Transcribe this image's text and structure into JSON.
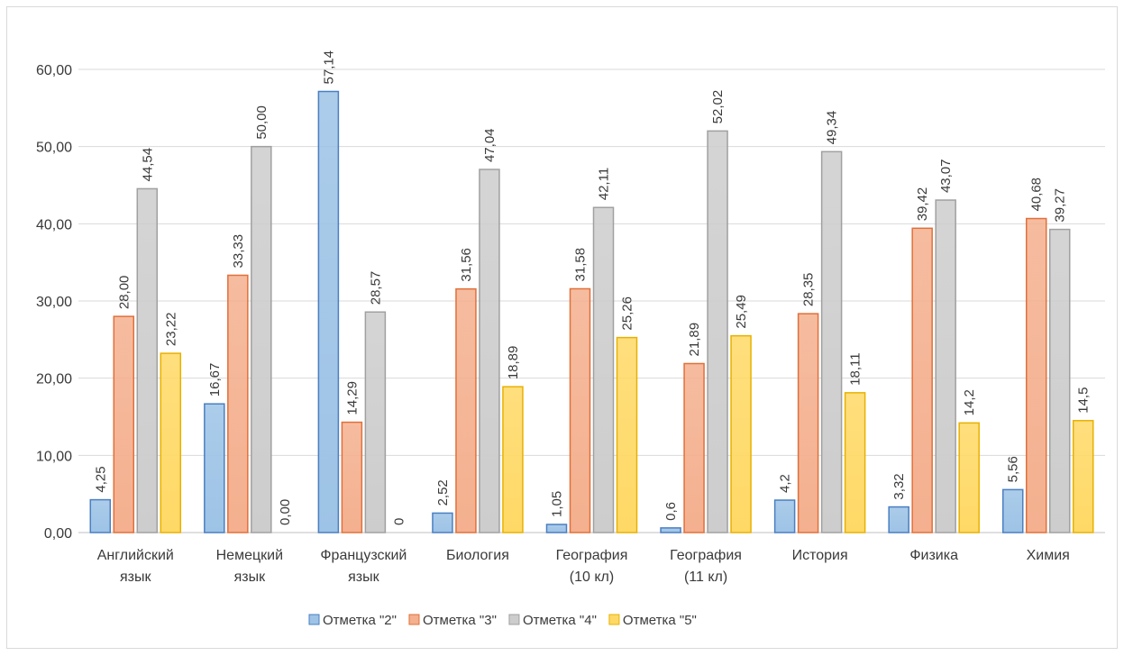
{
  "chart_data": {
    "type": "bar",
    "title": "",
    "xlabel": "",
    "ylabel": "",
    "ylim": [
      0,
      60
    ],
    "yticks": [
      "0,00",
      "10,00",
      "20,00",
      "30,00",
      "40,00",
      "50,00",
      "60,00"
    ],
    "ytick_values": [
      0,
      10,
      20,
      30,
      40,
      50,
      60
    ],
    "grid": true,
    "legend_position": "bottom",
    "categories": [
      [
        "Английский",
        "язык"
      ],
      [
        "Немецкий",
        "язык"
      ],
      [
        "Французский",
        "язык"
      ],
      [
        "Биология"
      ],
      [
        "География",
        "(10 кл)"
      ],
      [
        "География",
        "(11 кл)"
      ],
      [
        "История"
      ],
      [
        "Физика"
      ],
      [
        "Химия"
      ]
    ],
    "series": [
      {
        "name": "Отметка \"2\"",
        "color": "#9dc3e6",
        "stroke": "#4a7fc1",
        "values": [
          4.25,
          16.67,
          57.14,
          2.52,
          1.05,
          0.6,
          4.2,
          3.32,
          5.56
        ],
        "labels": [
          "4,25",
          "16,67",
          "57,14",
          "2,52",
          "1,05",
          "0,6",
          "4,2",
          "3,32",
          "5,56"
        ]
      },
      {
        "name": "Отметка \"3\"",
        "color": "#f4b08f",
        "stroke": "#e0703a",
        "values": [
          28.0,
          33.33,
          14.29,
          31.56,
          31.58,
          21.89,
          28.35,
          39.42,
          40.68
        ],
        "labels": [
          "28,00",
          "33,33",
          "14,29",
          "31,56",
          "31,58",
          "21,89",
          "28,35",
          "39,42",
          "40,68"
        ]
      },
      {
        "name": "Отметка \"4\"",
        "color": "#cdcdcd",
        "stroke": "#a0a0a0",
        "values": [
          44.54,
          50.0,
          28.57,
          47.04,
          42.11,
          52.02,
          49.34,
          43.07,
          39.27
        ],
        "labels": [
          "44,54",
          "50,00",
          "28,57",
          "47,04",
          "42,11",
          "52,02",
          "49,34",
          "43,07",
          "39,27"
        ]
      },
      {
        "name": "Отметка \"5\"",
        "color": "#ffd966",
        "stroke": "#e8b100",
        "values": [
          23.22,
          0.0,
          0,
          18.89,
          25.26,
          25.49,
          18.11,
          14.2,
          14.5
        ],
        "labels": [
          "23,22",
          "0,00",
          "0",
          "18,89",
          "25,26",
          "25,49",
          "18,11",
          "14,2",
          "14,5"
        ]
      }
    ]
  }
}
